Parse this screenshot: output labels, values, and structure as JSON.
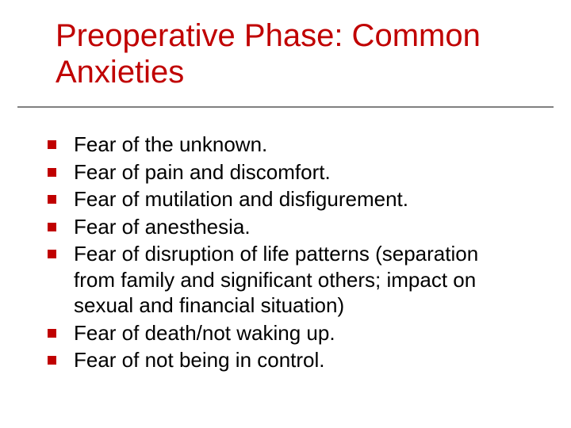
{
  "slide": {
    "title": "Preoperative Phase: Common Anxieties",
    "title_color": "#c00000",
    "title_fontsize": 40,
    "underline_color": "#808080",
    "bullet_marker_color": "#c00000",
    "body_fontsize": 26,
    "body_color": "#000000",
    "background_color": "#ffffff",
    "bullets": [
      "Fear of the unknown.",
      "Fear of pain and discomfort.",
      "Fear of mutilation and disfigurement.",
      "Fear of anesthesia.",
      "Fear of disruption of life patterns (separation from family and significant others; impact on sexual and financial situation)",
      "Fear of death/not waking up.",
      "Fear of not being in control."
    ]
  }
}
